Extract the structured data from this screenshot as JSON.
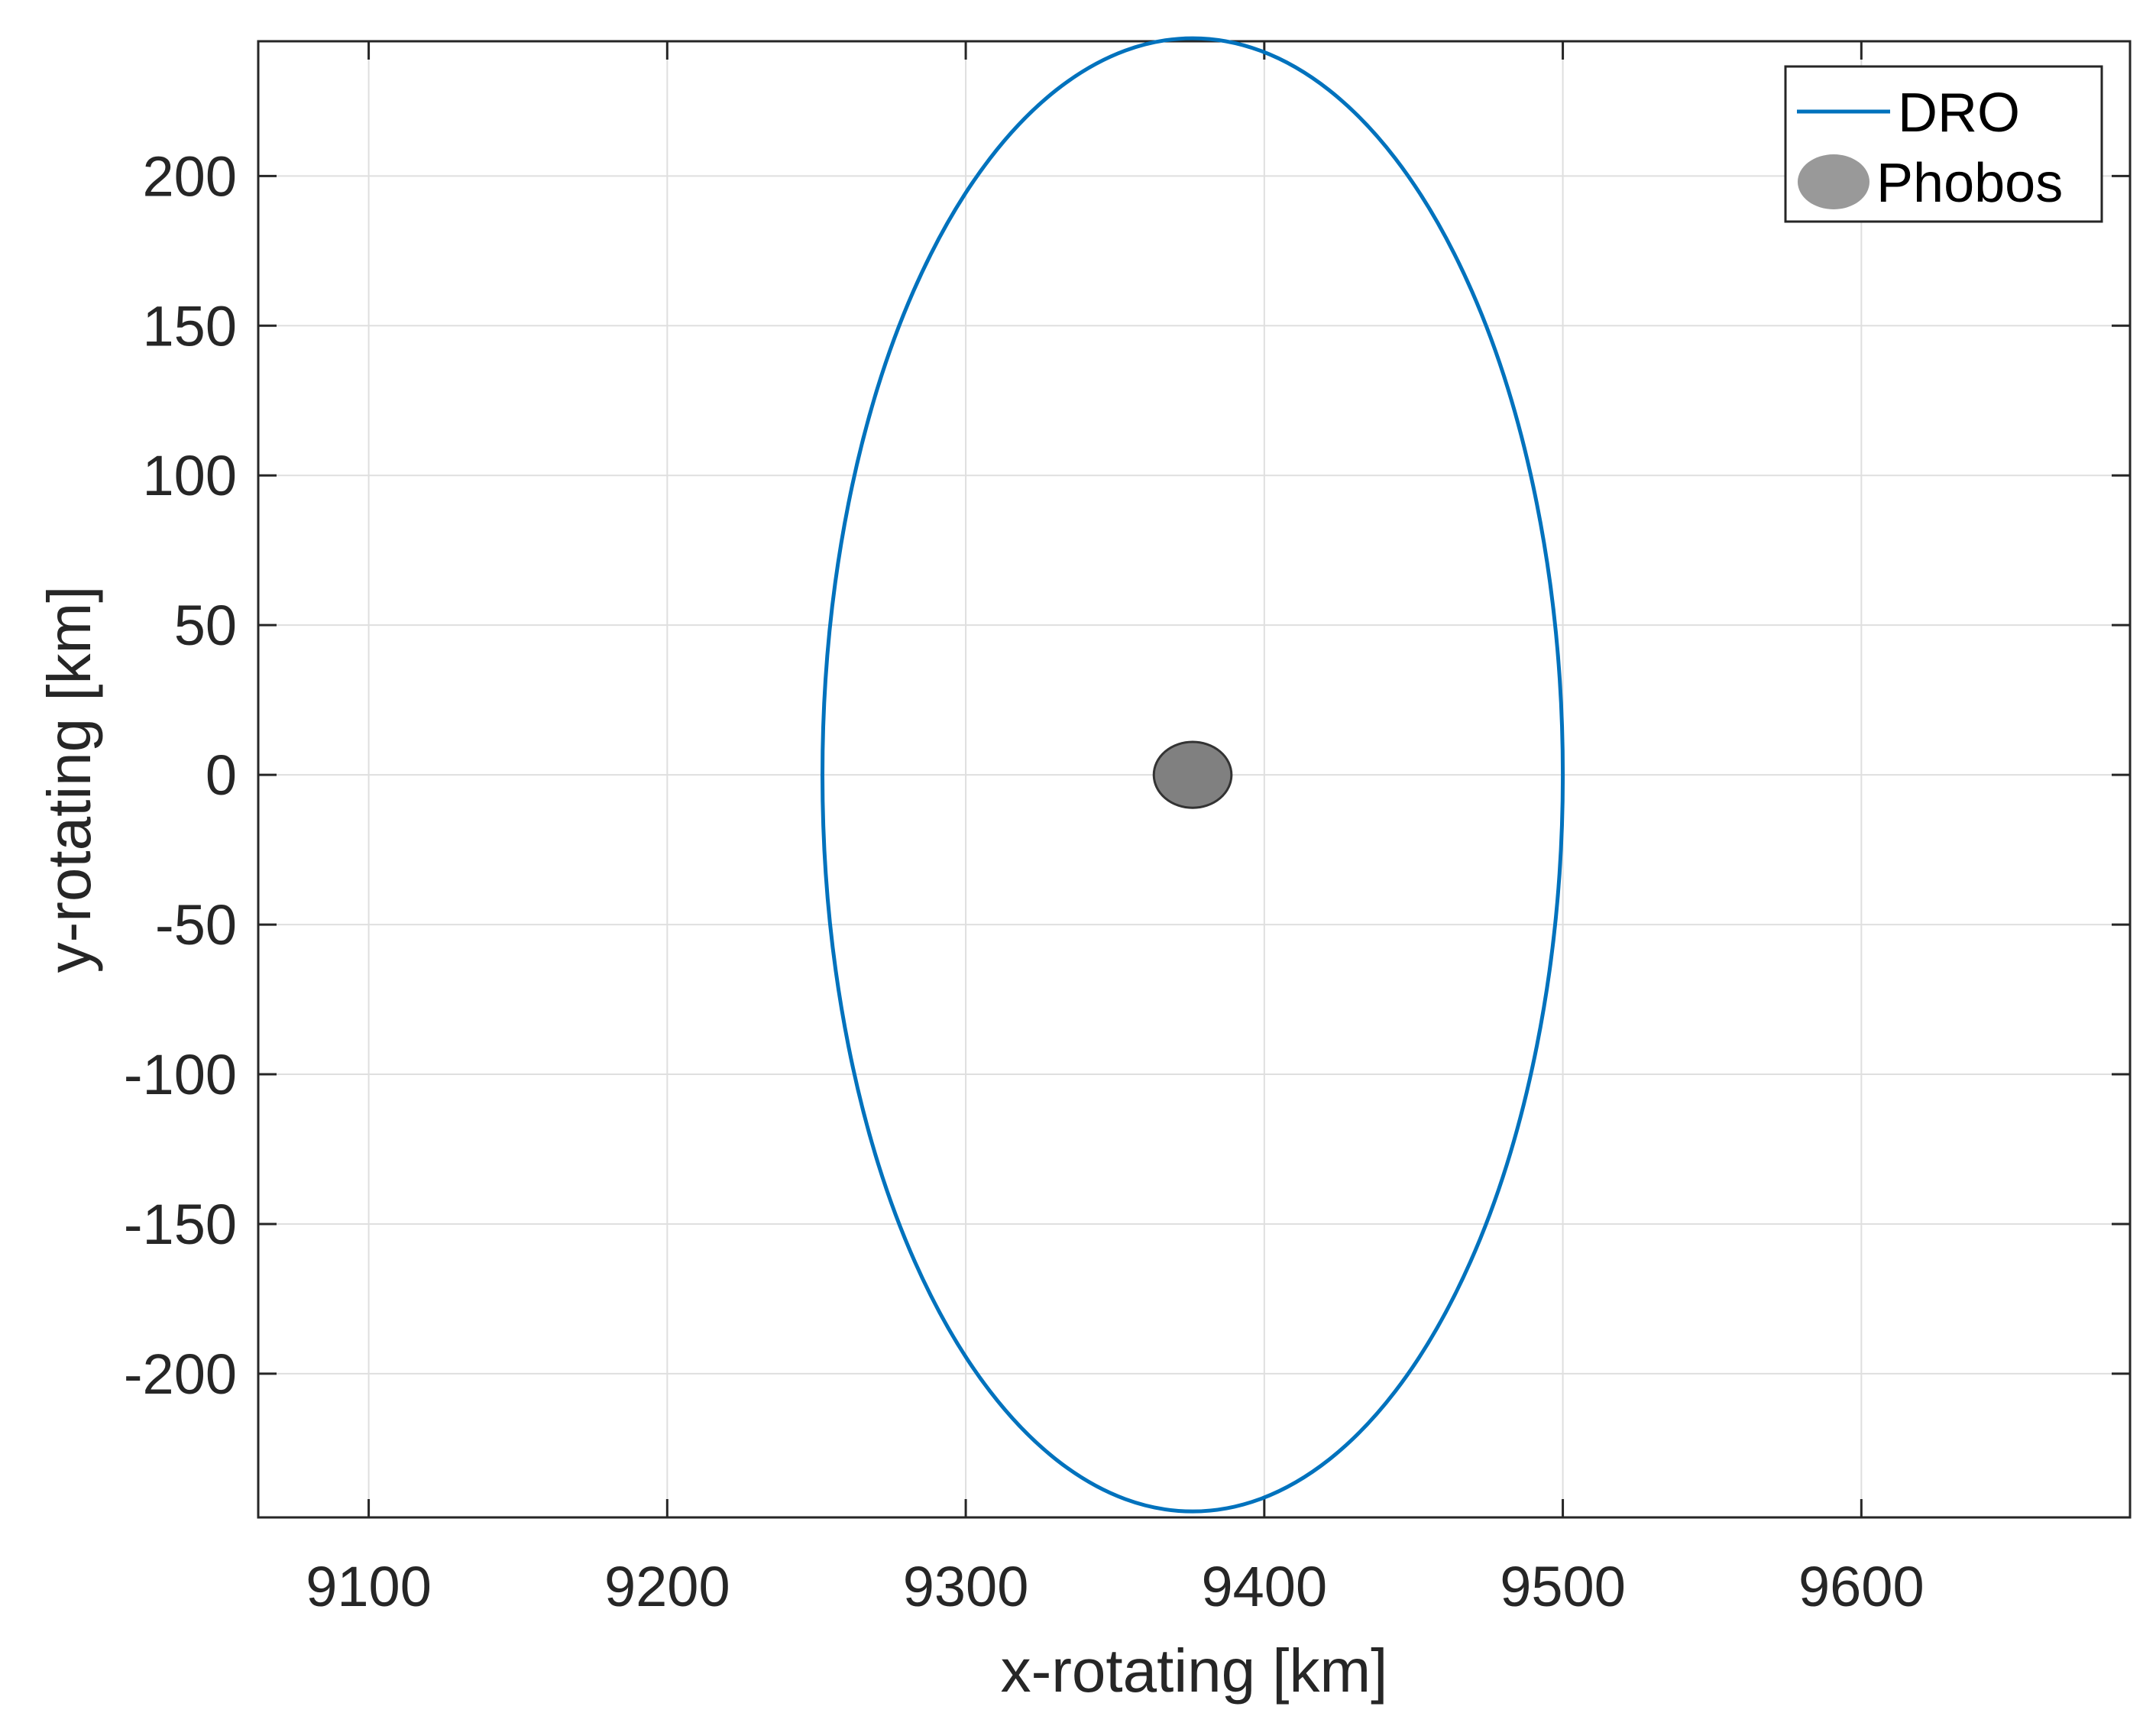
{
  "chart_data": {
    "type": "line",
    "xlabel": "x-rotating [km]",
    "ylabel": "y-rotating [km]",
    "xlim": [
      9063,
      9690
    ],
    "ylim": [
      -248,
      245
    ],
    "xticks": [
      9100,
      9200,
      9300,
      9400,
      9500,
      9600
    ],
    "yticks": [
      200,
      150,
      100,
      50,
      0,
      -50,
      -100,
      -150,
      -200
    ],
    "xtick_labels": [
      "9100",
      "9200",
      "9300",
      "9400",
      "9500",
      "9600"
    ],
    "ytick_labels": [
      "200",
      "150",
      "100",
      "50",
      "0",
      "-50",
      "-100",
      "-150",
      "-200"
    ],
    "grid": true,
    "legend": {
      "placement": "top-right"
    },
    "series": [
      {
        "name": "DRO",
        "kind": "closed-orbit",
        "color": "#0072BD",
        "center": [
          9376,
          0
        ],
        "semi_axis_x": 124,
        "semi_axis_y": 246
      },
      {
        "name": "Phobos",
        "kind": "body",
        "color": "#808080",
        "legend_color": "#999999",
        "center": [
          9376,
          0
        ],
        "radius_x": 13,
        "radius_y": 11
      }
    ]
  }
}
